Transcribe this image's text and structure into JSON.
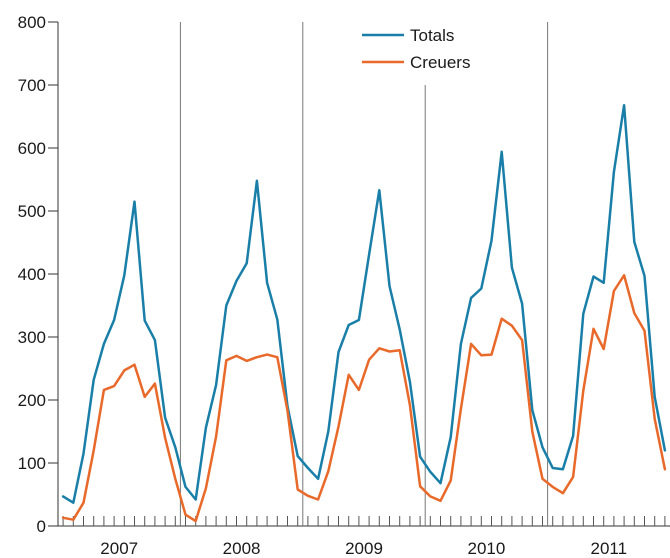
{
  "chart_data": {
    "type": "line",
    "title": "",
    "xlabel": "",
    "ylabel": "",
    "ylim": [
      0,
      800
    ],
    "yticks": [
      0,
      100,
      200,
      300,
      400,
      500,
      600,
      700,
      800
    ],
    "ytick_labels": [
      "0",
      "100",
      "200",
      "300",
      "400",
      "500",
      "600",
      "700",
      "800"
    ],
    "year_labels": [
      "2007",
      "2008",
      "2009",
      "2010",
      "2011"
    ],
    "months_per_year": 12,
    "grid": false,
    "year_separators": true,
    "legend": "top-center",
    "series": [
      {
        "name": "Totals",
        "color": "#1a7fa8",
        "values": [
          47,
          37,
          115,
          232,
          289,
          327,
          398,
          515,
          326,
          295,
          172,
          125,
          62,
          42,
          156,
          224,
          350,
          389,
          417,
          548,
          386,
          328,
          190,
          111,
          92,
          75,
          150,
          276,
          319,
          327,
          431,
          533,
          381,
          312,
          229,
          110,
          86,
          68,
          141,
          289,
          362,
          377,
          453,
          594,
          410,
          353,
          184,
          125,
          92,
          90,
          143,
          337,
          396,
          386,
          562,
          668,
          451,
          397,
          205,
          120
        ]
      },
      {
        "name": "Creuers",
        "color": "#e8692a",
        "values": [
          13,
          10,
          37,
          120,
          216,
          222,
          247,
          256,
          205,
          226,
          140,
          75,
          18,
          8,
          60,
          142,
          263,
          270,
          262,
          268,
          272,
          268,
          183,
          58,
          48,
          42,
          87,
          158,
          240,
          216,
          264,
          282,
          277,
          279,
          192,
          63,
          47,
          40,
          72,
          186,
          289,
          271,
          272,
          329,
          318,
          295,
          150,
          75,
          62,
          52,
          78,
          215,
          313,
          281,
          373,
          398,
          338,
          310,
          170,
          90
        ]
      }
    ]
  }
}
